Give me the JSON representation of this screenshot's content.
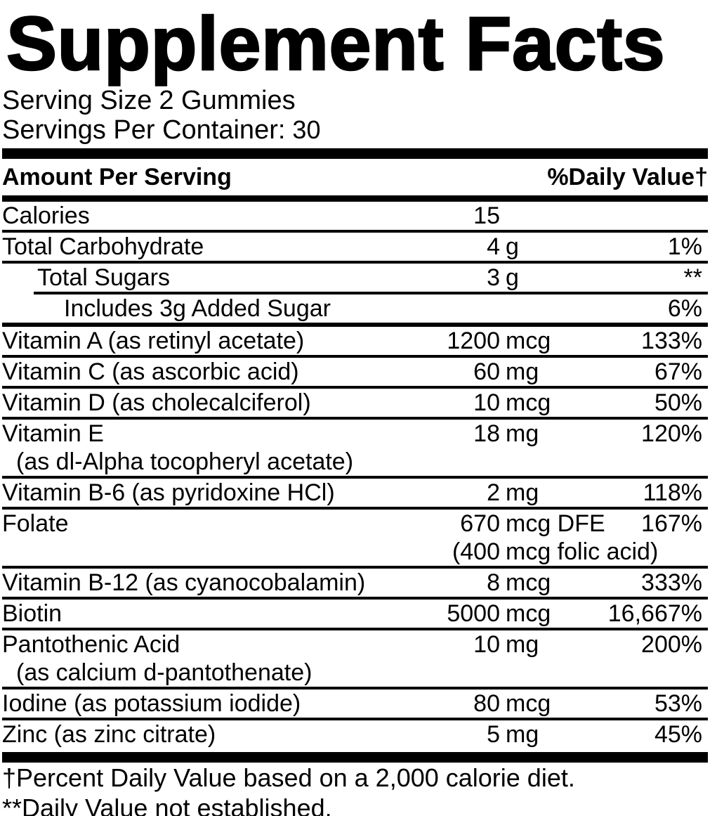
{
  "title": "Supplement Facts",
  "serving": {
    "size_label": "Serving Size",
    "size_value": "2 Gummies",
    "per_container_label": "Servings Per Container:",
    "per_container_value": "30"
  },
  "table": {
    "header": {
      "amount_label": "Amount Per Serving",
      "dv_label": "%Daily Value†"
    },
    "rows": [
      {
        "name": "Calories",
        "amount": "15",
        "unit": "",
        "dv": ""
      },
      {
        "name": "Total Carbohydrate",
        "amount": "4",
        "unit": "g",
        "dv": "1%"
      },
      {
        "name": "Total Sugars",
        "amount": "3",
        "unit": "g",
        "dv": "**"
      },
      {
        "name": "Includes 3g Added Sugar",
        "amount": "",
        "unit": "",
        "dv": "6%"
      },
      {
        "name": "Vitamin A (as retinyl acetate)",
        "amount": "1200",
        "unit": "mcg",
        "dv": "133%"
      },
      {
        "name": "Vitamin C (as ascorbic acid)",
        "amount": "60",
        "unit": "mg",
        "dv": "67%"
      },
      {
        "name": "Vitamin D (as cholecalciferol)",
        "amount": "10",
        "unit": "mcg",
        "dv": "50%"
      },
      {
        "name": "Vitamin E",
        "amount": "18",
        "unit": "mg",
        "dv": "120%",
        "name2": "(as dl-Alpha tocopheryl acetate)"
      },
      {
        "name": "Vitamin B-6 (as pyridoxine HCl)",
        "amount": "2",
        "unit": "mg",
        "dv": "118%"
      },
      {
        "name": "Folate",
        "amount": "670",
        "unit": "mcg DFE",
        "dv": "167%",
        "amount2": "(400",
        "unit2": "mcg folic acid)"
      },
      {
        "name": "Vitamin B-12 (as cyanocobalamin)",
        "amount": "8",
        "unit": "mcg",
        "dv": "333%"
      },
      {
        "name": "Biotin",
        "amount": "5000",
        "unit": "mcg",
        "dv": "16,667%"
      },
      {
        "name": "Pantothenic Acid",
        "amount": "10",
        "unit": "mg",
        "dv": "200%",
        "name2": "(as calcium d-pantothenate)"
      },
      {
        "name": "Iodine (as potassium iodide)",
        "amount": "80",
        "unit": "mcg",
        "dv": "53%"
      },
      {
        "name": "Zinc (as zinc citrate)",
        "amount": "5",
        "unit": "mg",
        "dv": "45%"
      }
    ]
  },
  "footnotes": [
    "†Percent Daily Value based on a 2,000 calorie diet.",
    "**Daily Value not established."
  ],
  "colors": {
    "text": "#000000",
    "background": "#ffffff"
  }
}
